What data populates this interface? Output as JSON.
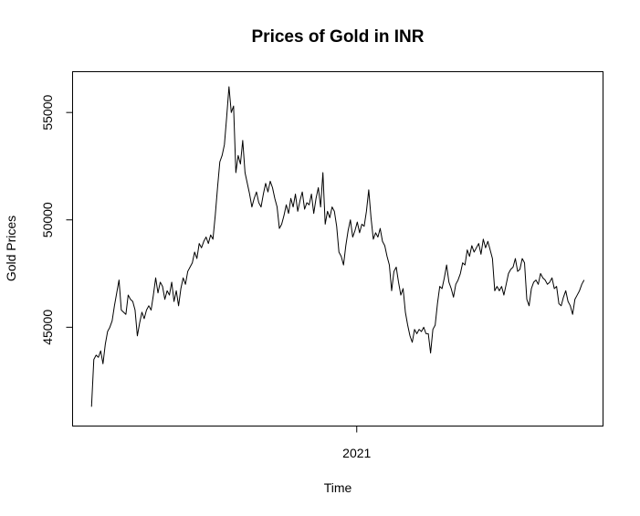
{
  "chart_data": {
    "type": "line",
    "title": "Prices of Gold in INR",
    "xlabel": "Time",
    "ylabel": "Gold Prices",
    "xlim": [
      2020.25,
      2021.65
    ],
    "ylim": [
      40400,
      56900
    ],
    "x_ticks": [
      {
        "value": 2021,
        "label": "2021"
      }
    ],
    "y_ticks": [
      {
        "value": 45000,
        "label": "45000"
      },
      {
        "value": 50000,
        "label": "50000"
      },
      {
        "value": 55000,
        "label": "55000"
      }
    ],
    "grid": false,
    "series": [
      {
        "color": "#000000",
        "x_start": 2020.3,
        "x_end": 2021.6,
        "values": [
          41300,
          43500,
          43700,
          43600,
          43900,
          43300,
          44200,
          44800,
          45000,
          45300,
          46000,
          46600,
          47200,
          45800,
          45700,
          45600,
          46500,
          46300,
          46200,
          45800,
          44600,
          45200,
          45700,
          45400,
          45800,
          46000,
          45800,
          46500,
          47300,
          46600,
          47100,
          46900,
          46300,
          46700,
          46500,
          47100,
          46200,
          46700,
          46000,
          46800,
          47300,
          47000,
          47600,
          47800,
          48000,
          48500,
          48200,
          48900,
          48700,
          49000,
          49200,
          48900,
          49300,
          49100,
          50200,
          51500,
          52700,
          53000,
          53500,
          54800,
          56200,
          55000,
          55300,
          52200,
          53000,
          52600,
          53700,
          52200,
          51700,
          51200,
          50600,
          51000,
          51300,
          50800,
          50600,
          51200,
          51700,
          51300,
          51800,
          51500,
          51000,
          50600,
          49600,
          49800,
          50200,
          50700,
          50300,
          51000,
          50600,
          51200,
          50400,
          50900,
          51300,
          50500,
          50800,
          50700,
          51200,
          50300,
          51000,
          51500,
          50600,
          52200,
          49800,
          50400,
          50100,
          50600,
          50400,
          49700,
          48500,
          48300,
          47900,
          48800,
          49500,
          50000,
          49200,
          49500,
          49900,
          49400,
          49800,
          49700,
          50400,
          51400,
          50100,
          49100,
          49400,
          49200,
          49600,
          49000,
          48800,
          48300,
          47900,
          46700,
          47600,
          47800,
          47100,
          46500,
          46800,
          45700,
          45100,
          44600,
          44300,
          44900,
          44700,
          44900,
          44800,
          45000,
          44700,
          44700,
          43800,
          44900,
          45100,
          46100,
          46900,
          46800,
          47300,
          47900,
          47100,
          46800,
          46400,
          47000,
          47200,
          47500,
          48000,
          47900,
          48600,
          48300,
          48800,
          48500,
          48700,
          48900,
          48400,
          49100,
          48700,
          49000,
          48600,
          48200,
          46700,
          46900,
          46700,
          46900,
          46500,
          47000,
          47500,
          47700,
          47800,
          48200,
          47600,
          47700,
          48200,
          48000,
          46300,
          46000,
          46800,
          47100,
          47200,
          47000,
          47500,
          47300,
          47200,
          47000,
          47100,
          47300,
          46800,
          46900,
          46100,
          46000,
          46400,
          46700,
          46200,
          46000,
          45600,
          46300,
          46500,
          46700,
          47000,
          47200
        ]
      }
    ]
  }
}
